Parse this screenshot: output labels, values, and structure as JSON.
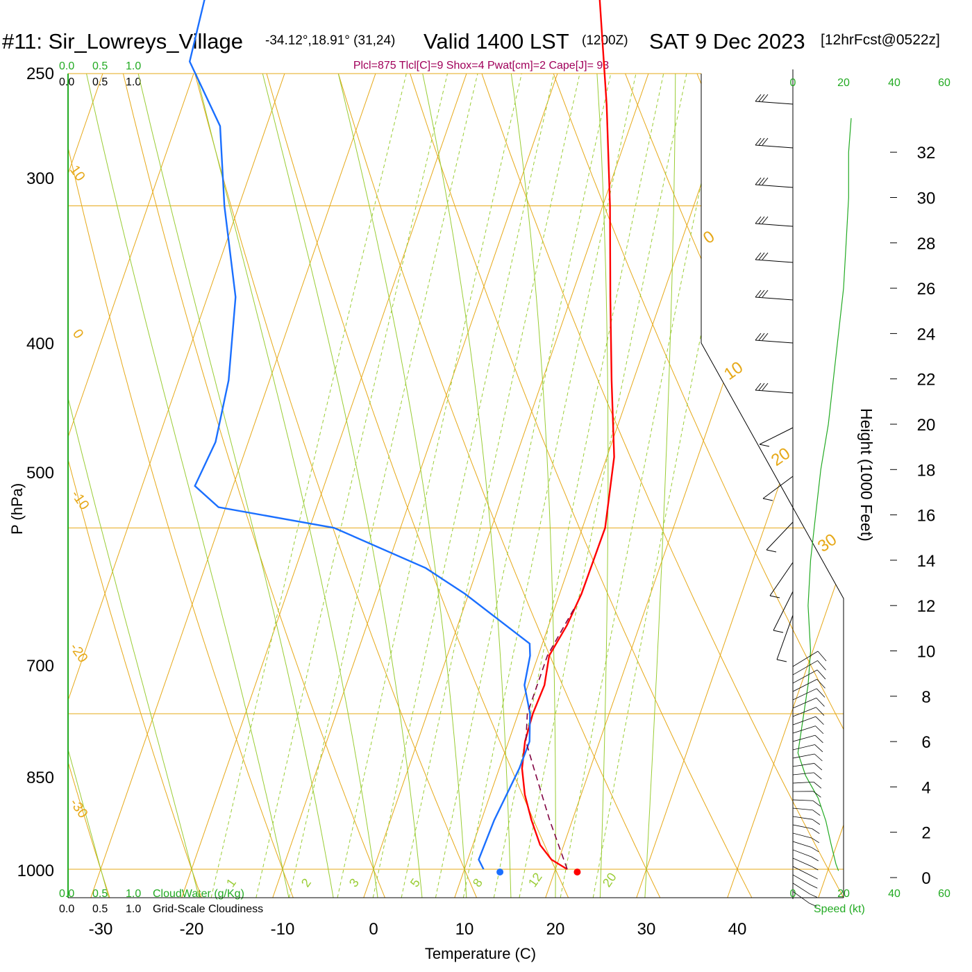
{
  "title": {
    "station": "#11: Sir_Lowreys_Village",
    "coords": "-34.12°,18.91° (31,24)",
    "valid": "Valid 1400 LST",
    "zulu": "(1200Z)",
    "date": "SAT 9 Dec 2023",
    "forecast": "[12hrFcst@0522z]"
  },
  "stats": "Plcl=875 Tlcl[C]=9 Shox=4 Pwat[cm]=2 Cape[J]= 93",
  "cloud_scales": {
    "top_green": [
      "0.0",
      "0.5",
      "1.0"
    ],
    "top_black": [
      "0.0",
      "0.5",
      "1.0"
    ],
    "bottom_green": [
      "0.0",
      "0.5",
      "1.0"
    ],
    "bottom_black": [
      "0.0",
      "0.5",
      "1.0"
    ],
    "cloudwater_label": "CloudWater (g/Kg)",
    "cloudiness_label": "Grid-Scale Cloudiness"
  },
  "speed_scale": {
    "ticks": [
      "0",
      "20",
      "40",
      "60"
    ],
    "label": "Speed (kt)"
  },
  "colors": {
    "temperature": "#ff0000",
    "dewpoint": "#1a6fff",
    "parcel": "#800040",
    "isotherm": "#e6a817",
    "dry_adiabat": "#e6a817",
    "moist_adiabat": "#99cc33",
    "mixing_ratio": "#99cc33",
    "speed_profile": "#22aa22",
    "stats_text": "#a0005a"
  },
  "chart_data": {
    "type": "line",
    "subtype": "skew-T log-P",
    "xlabel": "Temperature (C)",
    "ylabel": "P (hPa)",
    "y2label": "Height (1000 Feet)",
    "x_ticks": [
      -30,
      -20,
      -10,
      0,
      10,
      20,
      30,
      40
    ],
    "p_ticks": [
      250,
      300,
      400,
      500,
      700,
      850,
      1000
    ],
    "height_ticks": [
      0,
      2,
      4,
      6,
      8,
      10,
      12,
      14,
      16,
      18,
      20,
      22,
      24,
      26,
      28,
      30,
      32
    ],
    "isotherm_labels": [
      -30,
      -20,
      -10,
      0,
      10,
      20,
      30
    ],
    "top_isotherm_labels": [
      "10",
      "0",
      "-10",
      "-20",
      "-30"
    ],
    "right_isotherm_labels": [
      "0",
      "10",
      "20",
      "30"
    ],
    "mixing_ratio_labels": [
      "1",
      "2",
      "3",
      "5",
      "8",
      "12",
      "20"
    ],
    "series": [
      {
        "name": "Temperature",
        "points": [
          {
            "p": 1000,
            "t": 21.3
          },
          {
            "p": 990,
            "t": 19.2
          },
          {
            "p": 975,
            "t": 17.4
          },
          {
            "p": 950,
            "t": 15.5
          },
          {
            "p": 925,
            "t": 13.8
          },
          {
            "p": 900,
            "t": 12.5
          },
          {
            "p": 875,
            "t": 11.8
          },
          {
            "p": 850,
            "t": 11.6
          },
          {
            "p": 825,
            "t": 11.8
          },
          {
            "p": 800,
            "t": 11.2
          },
          {
            "p": 775,
            "t": 12.0
          },
          {
            "p": 750,
            "t": 12.4
          },
          {
            "p": 700,
            "t": 12.5
          },
          {
            "p": 650,
            "t": 10.8
          },
          {
            "p": 600,
            "t": 7.6
          },
          {
            "p": 550,
            "t": 4.3
          },
          {
            "p": 500,
            "t": 0.8
          },
          {
            "p": 450,
            "t": -3.4
          },
          {
            "p": 400,
            "t": -8.5
          },
          {
            "p": 350,
            "t": -13.2
          },
          {
            "p": 300,
            "t": -18.6
          },
          {
            "p": 270,
            "t": -24.1
          }
        ]
      },
      {
        "name": "Dewpoint",
        "points": [
          {
            "p": 1000,
            "t": 12.1
          },
          {
            "p": 990,
            "t": 11.2
          },
          {
            "p": 950,
            "t": 11.4
          },
          {
            "p": 900,
            "t": 12.2
          },
          {
            "p": 875,
            "t": 12.3
          },
          {
            "p": 850,
            "t": 11.3
          },
          {
            "p": 825,
            "t": 9.6
          },
          {
            "p": 800,
            "t": 9.1
          },
          {
            "p": 790,
            "t": 8.6
          },
          {
            "p": 750,
            "t": -0.4
          },
          {
            "p": 730,
            "t": -5.7
          },
          {
            "p": 700,
            "t": -17.3
          },
          {
            "p": 685,
            "t": -30.8
          },
          {
            "p": 670,
            "t": -34.2
          },
          {
            "p": 640,
            "t": -33.6
          },
          {
            "p": 600,
            "t": -34.5
          },
          {
            "p": 550,
            "t": -36.9
          },
          {
            "p": 500,
            "t": -41.6
          },
          {
            "p": 460,
            "t": -45.1
          },
          {
            "p": 430,
            "t": -50.9
          },
          {
            "p": 400,
            "t": -51.7
          },
          {
            "p": 360,
            "t": -54.5
          },
          {
            "p": 330,
            "t": -59.7
          },
          {
            "p": 300,
            "t": -62.6
          },
          {
            "p": 285,
            "t": -64.9
          },
          {
            "p": 270,
            "t": -68.1
          }
        ]
      },
      {
        "name": "Parcel",
        "points": [
          {
            "p": 1000,
            "t": 21.3
          },
          {
            "p": 950,
            "t": 17.5
          },
          {
            "p": 900,
            "t": 13.8
          },
          {
            "p": 875,
            "t": 11.9
          },
          {
            "p": 850,
            "t": 11.0
          },
          {
            "p": 800,
            "t": 11.0
          },
          {
            "p": 760,
            "t": 12.2
          }
        ]
      }
    ],
    "surface": {
      "temperature": 22.4,
      "dewpoint": 13.9
    },
    "wind_speed_profile_kt": [
      {
        "h": 0.3,
        "v": 18
      },
      {
        "h": 0.6,
        "v": 17
      },
      {
        "h": 1.5,
        "v": 15
      },
      {
        "h": 2.5,
        "v": 13
      },
      {
        "h": 3.5,
        "v": 10
      },
      {
        "h": 4.5,
        "v": 5
      },
      {
        "h": 5.5,
        "v": 2
      },
      {
        "h": 7,
        "v": 4
      },
      {
        "h": 8.5,
        "v": 6
      },
      {
        "h": 10,
        "v": 7
      },
      {
        "h": 12,
        "v": 6
      },
      {
        "h": 14,
        "v": 7
      },
      {
        "h": 16,
        "v": 9
      },
      {
        "h": 18,
        "v": 11
      },
      {
        "h": 20,
        "v": 14
      },
      {
        "h": 22,
        "v": 16
      },
      {
        "h": 24,
        "v": 18
      },
      {
        "h": 26,
        "v": 20
      },
      {
        "h": 28,
        "v": 21
      },
      {
        "h": 30,
        "v": 22
      },
      {
        "h": 32,
        "v": 22
      },
      {
        "h": 33.5,
        "v": 23
      }
    ],
    "grid": true
  }
}
